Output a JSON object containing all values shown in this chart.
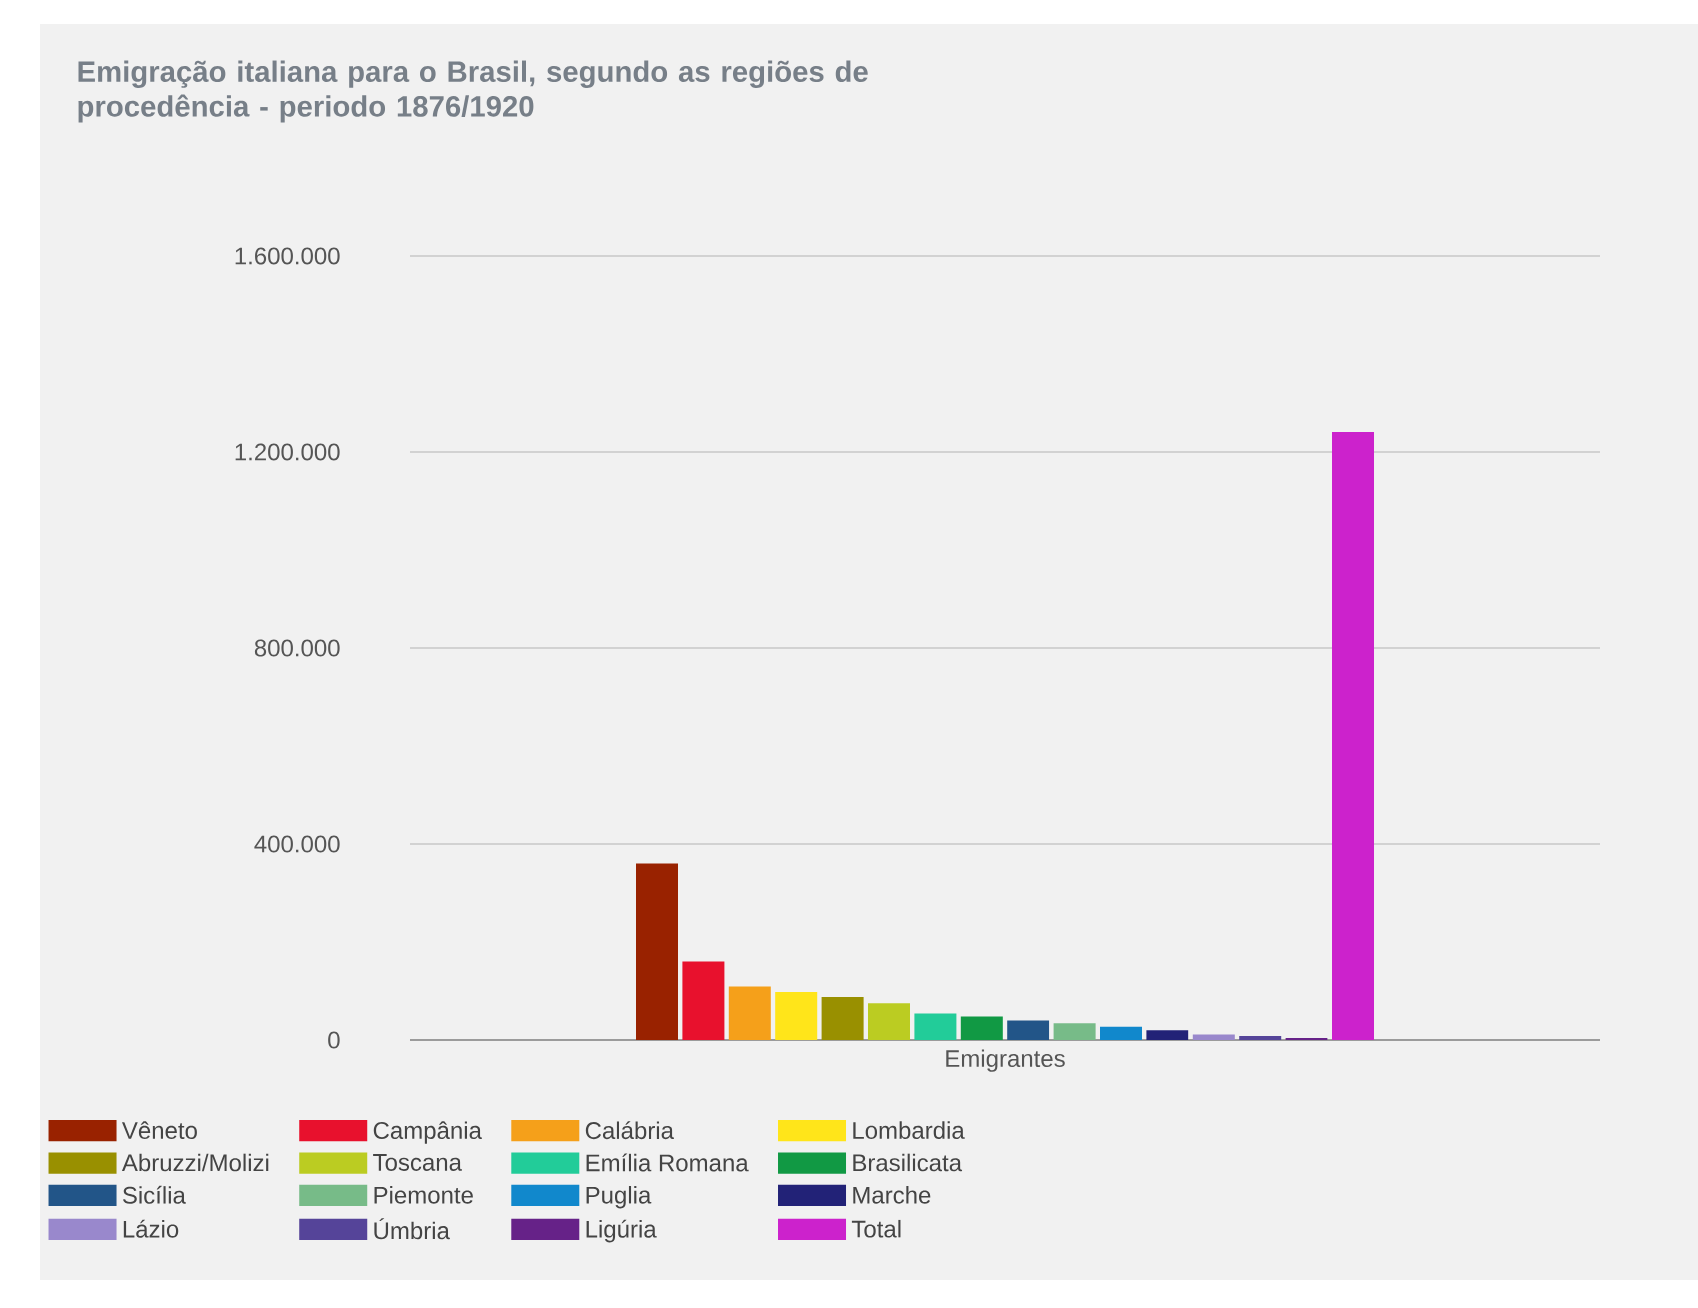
{
  "chart_data": {
    "type": "bar",
    "title": "Emigração italiana para o Brasil, segundo as regiões de procedência - periodo 1876/1920",
    "categories": [
      "Emigrantes"
    ],
    "series": [
      {
        "name": "Vêneto",
        "color": "#992200",
        "values": [
          360000
        ]
      },
      {
        "name": "Campânia",
        "color": "#e8112d",
        "values": [
          160000
        ]
      },
      {
        "name": "Calábria",
        "color": "#f5a01a",
        "values": [
          109000
        ]
      },
      {
        "name": "Lombardia",
        "color": "#ffe51a",
        "values": [
          98000
        ]
      },
      {
        "name": "Abruzzi/Molizi",
        "color": "#999000",
        "values": [
          88000
        ]
      },
      {
        "name": "Toscana",
        "color": "#bbcc22",
        "values": [
          75000
        ]
      },
      {
        "name": "Emília Romana",
        "color": "#22cc99",
        "values": [
          54000
        ]
      },
      {
        "name": "Brasilicata",
        "color": "#119944",
        "values": [
          48000
        ]
      },
      {
        "name": "Sicília",
        "color": "#225588",
        "values": [
          40000
        ]
      },
      {
        "name": "Piemonte",
        "color": "#77bb88",
        "values": [
          34000
        ]
      },
      {
        "name": "Puglia",
        "color": "#1188cc",
        "values": [
          27000
        ]
      },
      {
        "name": "Marche",
        "color": "#222277",
        "values": [
          20000
        ]
      },
      {
        "name": "Lázio",
        "color": "#9988cc",
        "values": [
          11000
        ]
      },
      {
        "name": "Úmbria",
        "color": "#554499",
        "values": [
          8000
        ]
      },
      {
        "name": "Ligúria",
        "color": "#662288",
        "values": [
          4000
        ]
      },
      {
        "name": "Total",
        "color": "#cc22cc",
        "values": [
          1241000
        ]
      }
    ],
    "ylim": [
      0,
      1600000
    ],
    "yticks": [
      0,
      {
        "value": 400000,
        "label": "400.000"
      },
      {
        "value": 800000,
        "label": "800.000"
      },
      {
        "value": 1200000,
        "label": "1.200.000"
      },
      {
        "value": 1600000,
        "label": "1.600.000"
      }
    ],
    "grid": "y",
    "legend": "bottom"
  }
}
